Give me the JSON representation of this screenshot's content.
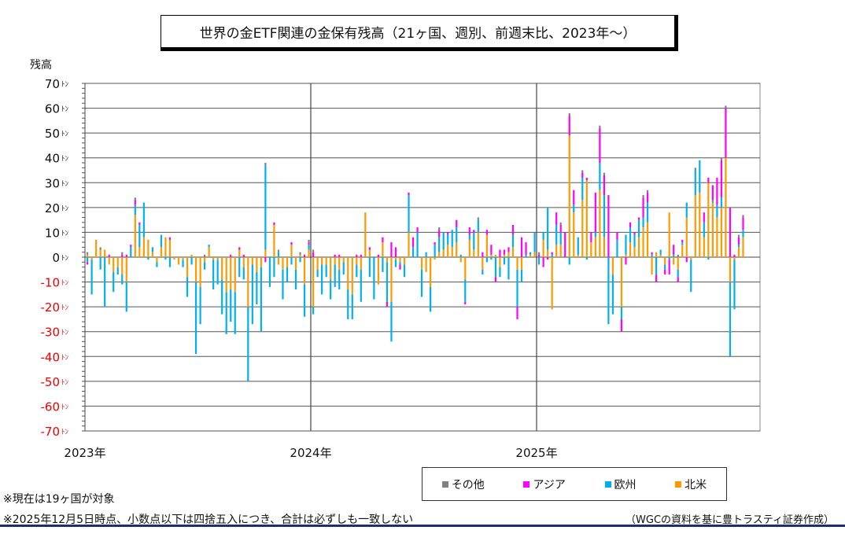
{
  "chart_data": {
    "type": "bar",
    "stacked": true,
    "title": "世界の金ETF関連の金保有残高（21ヶ国、週別、前週末比、2023年～）",
    "ylabel": "残高",
    "yunit": "ﾄﾝ",
    "ylim": [
      -70,
      70
    ],
    "yticks": [
      70,
      60,
      50,
      40,
      30,
      20,
      10,
      0,
      -10,
      -20,
      -30,
      -40,
      -50,
      -60,
      -70
    ],
    "xticks": [
      "2023年",
      "2024年",
      "2025年"
    ],
    "weeks_per_year": 52,
    "legend": [
      "その他",
      "アジア",
      "欧州",
      "北米"
    ],
    "legend_position": "bottom-right",
    "grid": true,
    "series": [
      {
        "name": "北米",
        "color": "#ff9900",
        "values": [
          1,
          -1,
          7,
          3,
          3,
          -3,
          -6,
          -4,
          -7,
          -10,
          0,
          17,
          4,
          8,
          7,
          2,
          -2,
          4,
          8,
          7,
          -1,
          -3,
          -1,
          -8,
          1,
          -10,
          -12,
          -2,
          4,
          -1,
          -1,
          -9,
          -14,
          -13,
          -14,
          3,
          -4,
          -20,
          -3,
          -6,
          -4,
          3,
          0,
          13,
          -3,
          -5,
          -4,
          5,
          -5,
          1,
          -11,
          3,
          -20,
          -5,
          -3,
          -3,
          -9,
          -3,
          -5,
          -2,
          -13,
          -15,
          -3,
          -5,
          18,
          3,
          0,
          -11,
          6,
          -2,
          -18,
          -1,
          -2,
          -3,
          10,
          0,
          0,
          -5,
          -6,
          -12,
          -1,
          2,
          3,
          5,
          4,
          6,
          -2,
          -9,
          7,
          3,
          10,
          -5,
          9,
          1,
          1,
          -4,
          1,
          2,
          4,
          -5,
          -5,
          0,
          1,
          2,
          0,
          7,
          3,
          -21,
          5,
          5,
          0,
          49,
          18,
          1,
          23,
          31,
          6,
          8,
          27,
          8,
          0,
          -7,
          0,
          -20,
          1,
          6,
          4,
          8,
          12,
          14,
          -7,
          2,
          1,
          -3,
          18,
          -3,
          -5,
          5,
          16,
          -1,
          25,
          26,
          8,
          30,
          22,
          16,
          20,
          40,
          -10,
          -1,
          4,
          8
        ]
      },
      {
        "name": "欧州",
        "color": "#00b0f0",
        "values": [
          -2,
          -14,
          0,
          -5,
          -20,
          0,
          -8,
          -3,
          -4,
          -12,
          4,
          4,
          9,
          14,
          -1,
          2,
          -2,
          5,
          -1,
          -4,
          0,
          0,
          -3,
          -8,
          -3,
          -29,
          -15,
          -3,
          1,
          -12,
          -10,
          -14,
          -17,
          -13,
          -17,
          -8,
          -5,
          -30,
          -24,
          -13,
          -26,
          34,
          -12,
          -8,
          2,
          -12,
          -6,
          -3,
          -8,
          -2,
          -13,
          2,
          -3,
          -3,
          -12,
          -5,
          -8,
          -9,
          -8,
          -5,
          -12,
          -10,
          -5,
          -13,
          0,
          -8,
          -17,
          0,
          -6,
          -16,
          -16,
          -3,
          -1,
          -5,
          15,
          4,
          10,
          -11,
          2,
          -10,
          5,
          6,
          7,
          4,
          7,
          6,
          1,
          -9,
          2,
          7,
          5,
          -2,
          -2,
          -1,
          -8,
          -4,
          -3,
          -9,
          5,
          -15,
          -5,
          1,
          1,
          8,
          -3,
          3,
          17,
          1,
          8,
          5,
          0,
          -3,
          3,
          7,
          9,
          -1,
          0,
          2,
          11,
          17,
          -27,
          -16,
          7,
          -5,
          8,
          6,
          5,
          7,
          4,
          8,
          1,
          -7,
          2,
          -2,
          -1,
          1,
          -3,
          1,
          6,
          -13,
          10,
          13,
          6,
          -1,
          1,
          5,
          4,
          0,
          -30,
          -20,
          1,
          3
        ]
      },
      {
        "name": "アジア",
        "color": "#ff00ff",
        "values": [
          -1,
          0,
          0,
          0,
          0,
          1,
          0,
          0,
          1,
          1,
          1,
          2,
          1,
          0,
          0,
          0,
          0,
          0,
          0,
          1,
          0,
          0,
          0,
          0,
          0,
          0,
          0,
          0,
          0,
          0,
          0,
          0,
          0,
          1,
          0,
          1,
          1,
          0,
          0,
          0,
          0,
          -2,
          0,
          1,
          0,
          0,
          0,
          1,
          0,
          0,
          1,
          1,
          2,
          0,
          0,
          0,
          0,
          1,
          1,
          0,
          0,
          0,
          1,
          1,
          0,
          1,
          0,
          1,
          2,
          -2,
          6,
          4,
          -2,
          0,
          1,
          4,
          2,
          0,
          0,
          0,
          1,
          3,
          0,
          1,
          0,
          3,
          0,
          -1,
          3,
          1,
          0,
          2,
          2,
          4,
          -2,
          3,
          2,
          2,
          4,
          -5,
          8,
          5,
          0,
          0,
          1,
          -4,
          -1,
          1,
          5,
          3,
          10,
          8,
          6,
          0,
          2,
          1,
          4,
          16,
          14,
          8,
          25,
          0,
          3,
          -5,
          -3,
          2,
          1,
          1,
          8,
          4,
          1,
          -3,
          0,
          -2,
          -6,
          4,
          -2,
          1,
          -2,
          0,
          0,
          0,
          4,
          2,
          6,
          11,
          15,
          20,
          20,
          1,
          3,
          5
        ]
      },
      {
        "name": "その他",
        "color": "#808080",
        "values": [
          1,
          0,
          0,
          1,
          0,
          0,
          0,
          0,
          1,
          0,
          0,
          1,
          0,
          0,
          0,
          0,
          0,
          0,
          0,
          0,
          0,
          0,
          0,
          0,
          0,
          0,
          0,
          1,
          0,
          0,
          0,
          0,
          0,
          0,
          0,
          0,
          0,
          0,
          0,
          0,
          0,
          1,
          0,
          0,
          1,
          0,
          0,
          0,
          0,
          1,
          0,
          1,
          1,
          0,
          0,
          0,
          0,
          0,
          0,
          0,
          0,
          0,
          0,
          0,
          0,
          0,
          0,
          0,
          0,
          0,
          0,
          0,
          0,
          0,
          0,
          0,
          0,
          0,
          0,
          0,
          0,
          1,
          0,
          0,
          0,
          0,
          0,
          0,
          0,
          0,
          1,
          0,
          0,
          0,
          0,
          0,
          0,
          0,
          0,
          0,
          0,
          0,
          0,
          0,
          1,
          0,
          0,
          0,
          0,
          1,
          0,
          1,
          0,
          0,
          1,
          0,
          0,
          0,
          1,
          1,
          0,
          0,
          0,
          0,
          0,
          0,
          0,
          0,
          1,
          1,
          0,
          0,
          0,
          0,
          0,
          0,
          1,
          0,
          0,
          0,
          1,
          0,
          0,
          0,
          0,
          0,
          1,
          1,
          0,
          0,
          1,
          1
        ]
      }
    ]
  },
  "notes": {
    "note1": "※現在は19ヶ国が対象",
    "note2": "※2025年12月5日時点、小数点以下は四捨五入につき、合計は必ずしも一致しない",
    "source": "（WGCの資料を基に豊トラスティ証券作成）"
  }
}
